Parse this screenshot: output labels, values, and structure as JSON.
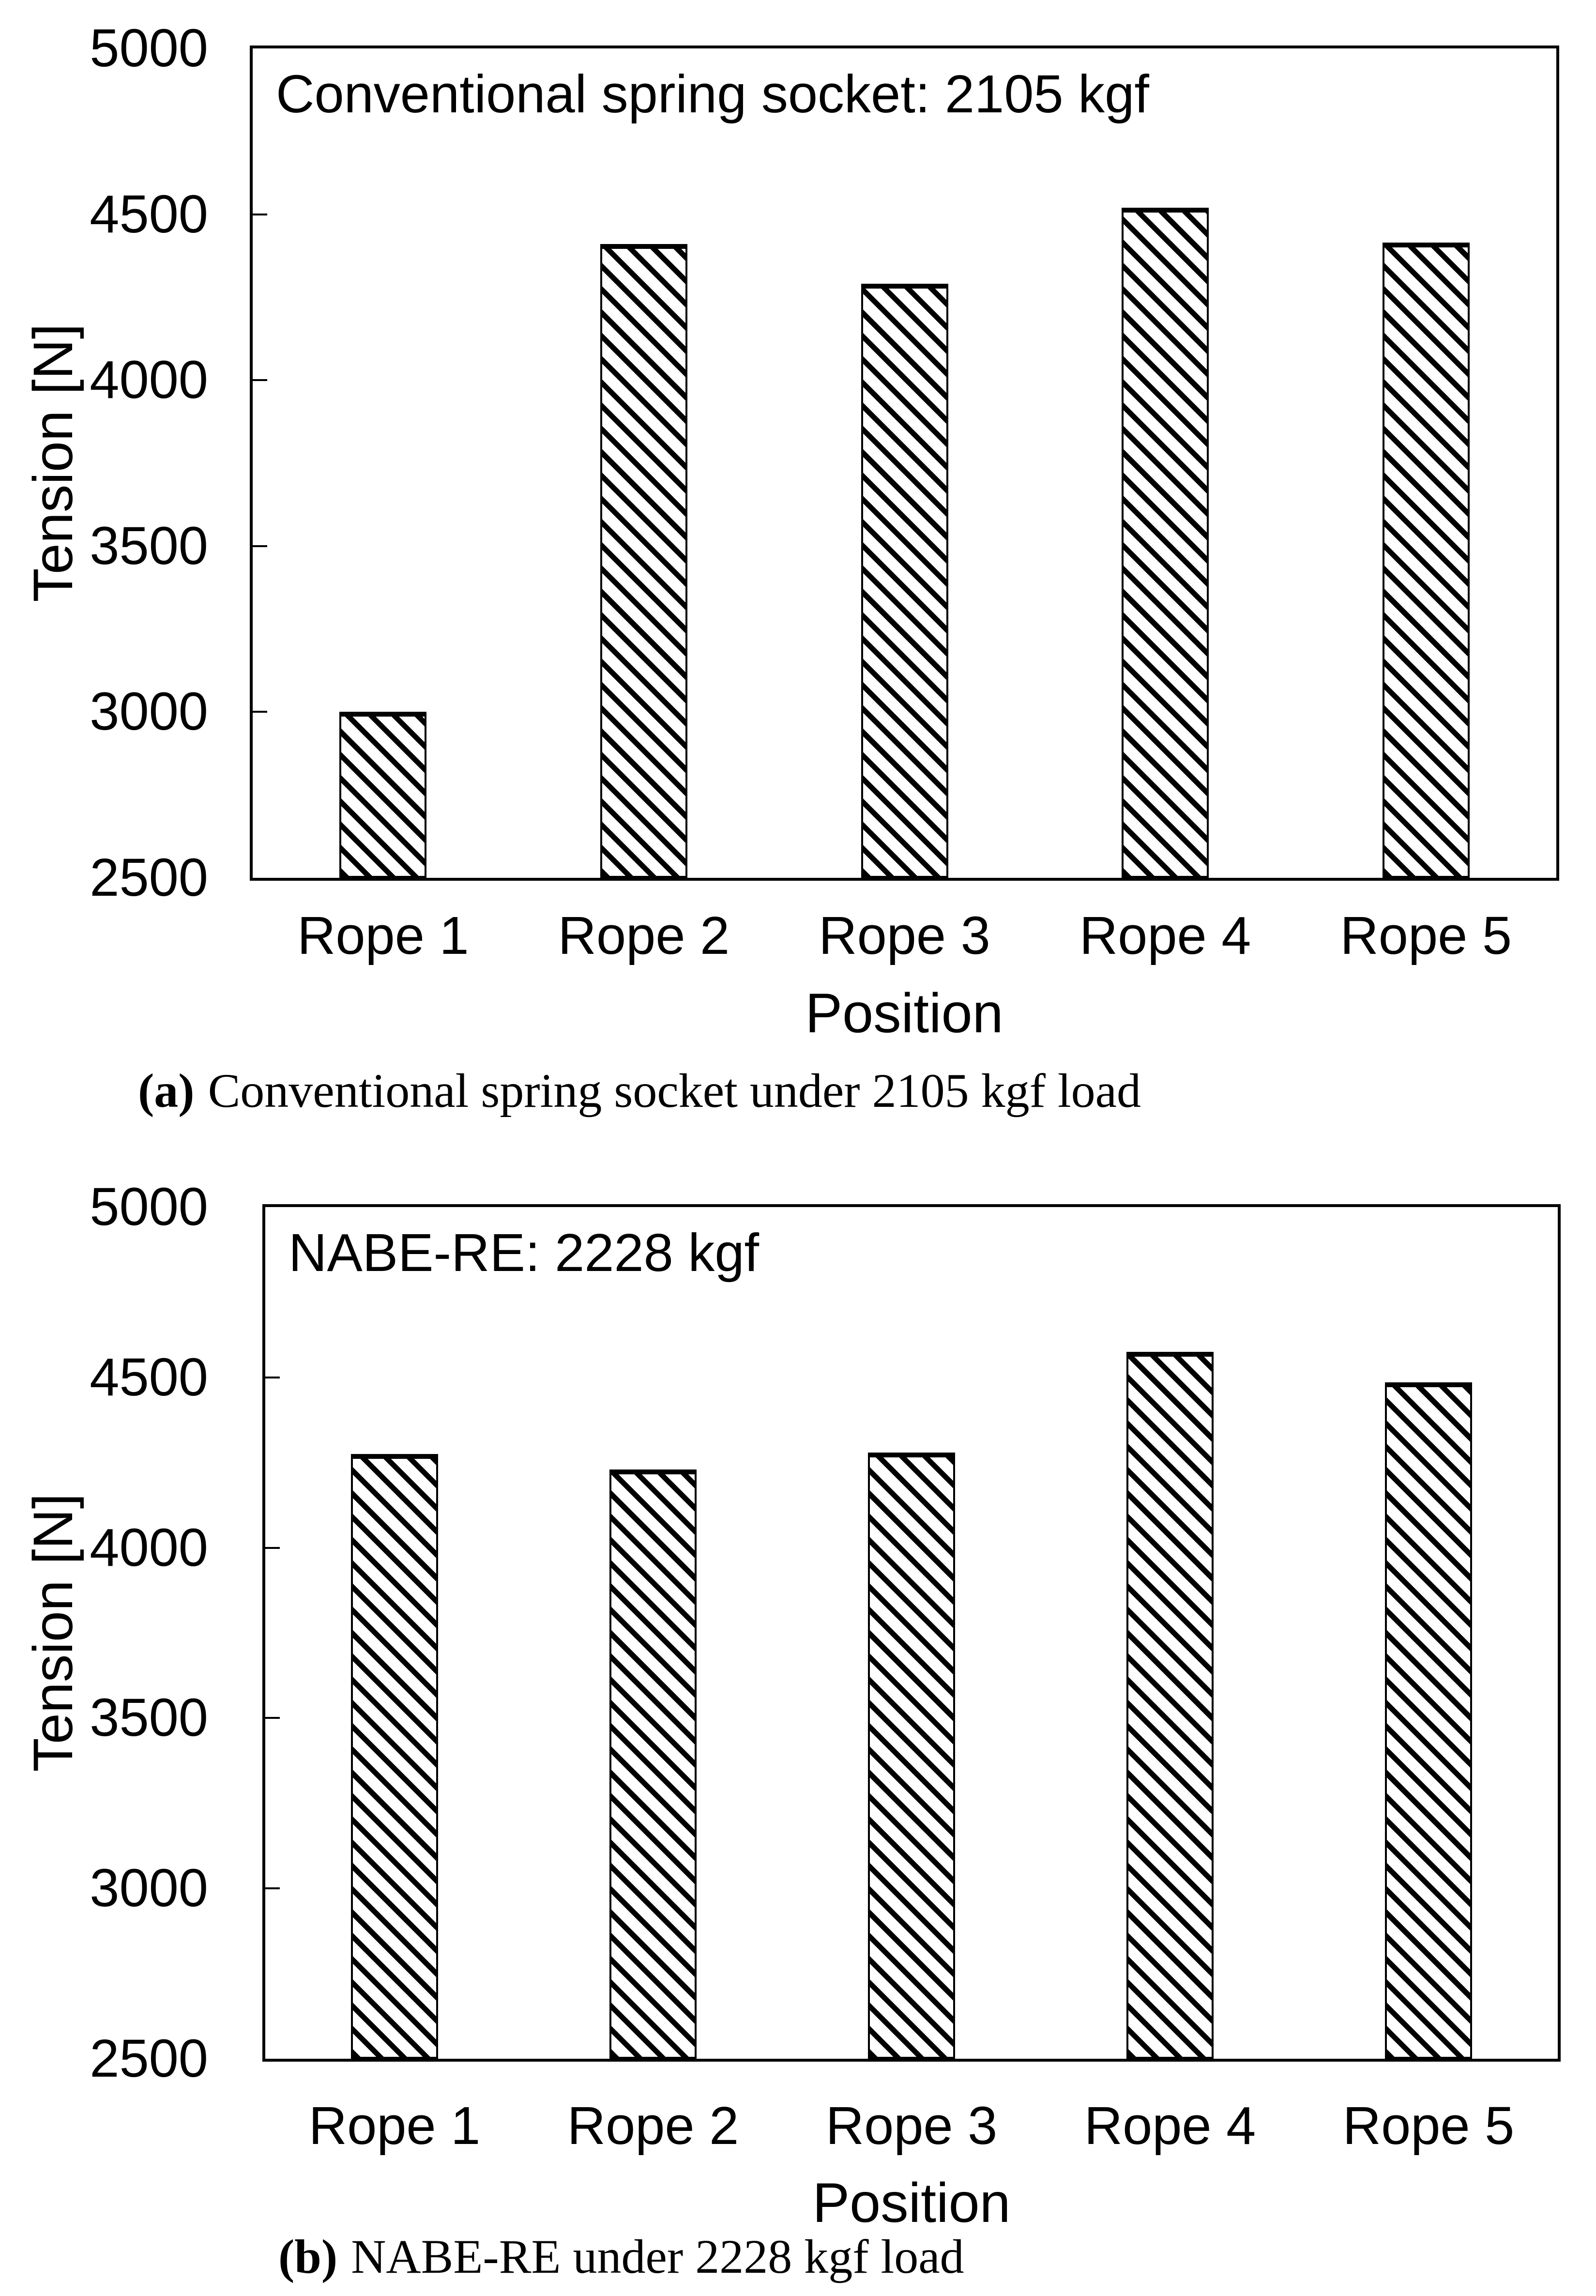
{
  "figure": {
    "colors": {
      "ink": "#000000",
      "paper": "#ffffff"
    }
  },
  "chart_data": [
    {
      "type": "bar",
      "title": "Conventional spring socket: 2105 kgf",
      "categories": [
        "Rope 1",
        "Rope 2",
        "Rope 3",
        "Rope 4",
        "Rope 5"
      ],
      "values": [
        3000,
        4410,
        4290,
        4520,
        4415
      ],
      "xlabel": "Position",
      "ylabel": "Tension [N]",
      "ylim": [
        2500,
        5000
      ],
      "yticks": [
        2500,
        3000,
        3500,
        4000,
        4500,
        5000
      ],
      "grid": "off",
      "bar_fill": "black diagonal hatch on white",
      "caption": {
        "label": "(a)",
        "text": "Conventional spring socket under 2105 kgf load"
      }
    },
    {
      "type": "bar",
      "title": "NABE-RE: 2228 kgf",
      "categories": [
        "Rope 1",
        "Rope 2",
        "Rope 3",
        "Rope 4",
        "Rope 5"
      ],
      "values": [
        4275,
        4230,
        4280,
        4575,
        4485
      ],
      "xlabel": "Position",
      "ylabel": "Tension [N]",
      "ylim": [
        2500,
        5000
      ],
      "yticks": [
        2500,
        3000,
        3500,
        4000,
        4500,
        5000
      ],
      "grid": "off",
      "bar_fill": "black diagonal hatch on white",
      "caption": {
        "label": "(b)",
        "text": "NABE-RE under 2228 kgf load"
      }
    }
  ]
}
